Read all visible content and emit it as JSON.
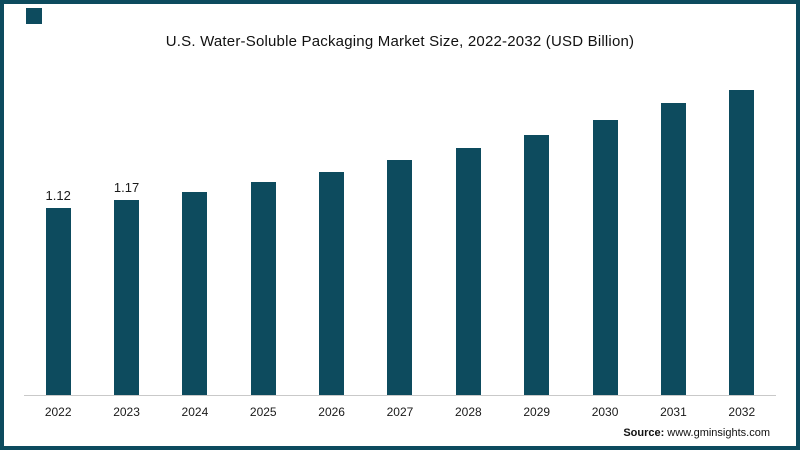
{
  "header": {
    "title": "U.S. Water-Soluble Packaging Market Size, 2022-2032 (USD Billion)"
  },
  "branding": {
    "logo_mark": "teal-square-logo",
    "accent_color": "#0d4b5e"
  },
  "source": {
    "prefix": "Source:",
    "url": "www.gminsights.com"
  },
  "chart_data": {
    "type": "bar",
    "title": "U.S. Water-Soluble Packaging Market Size, 2022-2032 (USD Billion)",
    "categories": [
      "2022",
      "2023",
      "2024",
      "2025",
      "2026",
      "2027",
      "2028",
      "2029",
      "2030",
      "2031",
      "2032"
    ],
    "values": [
      1.12,
      1.17,
      1.22,
      1.28,
      1.34,
      1.41,
      1.48,
      1.56,
      1.65,
      1.75,
      1.86
    ],
    "data_labels": [
      "1.12",
      "1.17",
      "",
      "",
      "",
      "",
      "",
      "",
      "",
      "",
      ""
    ],
    "bar_color": "#0d4b5e",
    "xlabel": "",
    "ylabel": "",
    "ylim": [
      0,
      1.95
    ],
    "grid": false,
    "legend": "none",
    "axis_line_color": "#c9c9c9"
  }
}
